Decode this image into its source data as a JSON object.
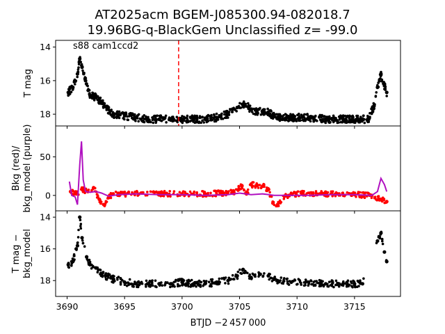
{
  "figure": {
    "title_line1": "AT2025acm  BGEM-J085300.94-082018.7",
    "title_line2": "19.96BG-q-BlackGem Unclassified z= -99.0",
    "annotation": "s88 cam1ccd2",
    "xlabel": "BTJD −2 457 000"
  },
  "chart_data": [
    {
      "type": "scatter",
      "panel": "top",
      "ylabel": "T mag",
      "y_inverted": true,
      "xlim": [
        3689.0,
        3719.0
      ],
      "ylim": [
        18.7,
        13.6
      ],
      "xticks": [
        3690,
        3695,
        3700,
        3705,
        3710,
        3715
      ],
      "yticks": [
        14,
        16,
        18
      ],
      "vline": {
        "x": 3699.7,
        "color": "#ff0000",
        "style": "dashed"
      },
      "series": [
        {
          "color": "#000000",
          "x": [
            3690.1,
            3690.5,
            3690.9,
            3691.1,
            3691.3,
            3691.6,
            3692.0,
            3692.5,
            3693.0,
            3693.5,
            3694.0,
            3695.0,
            3696.0,
            3697.0,
            3698.0,
            3699.0,
            3700.0,
            3701.0,
            3702.0,
            3703.0,
            3704.0,
            3704.8,
            3705.3,
            3705.8,
            3706.5,
            3707.0,
            3707.5,
            3708.0,
            3708.5,
            3709.5,
            3711.0,
            3712.5,
            3714.0,
            3715.5,
            3716.2,
            3716.7,
            3717.0,
            3717.3,
            3717.6,
            3717.8
          ],
          "y": [
            16.7,
            16.4,
            15.6,
            14.7,
            15.2,
            16.0,
            16.9,
            17.0,
            17.3,
            17.7,
            18.0,
            18.1,
            18.2,
            18.3,
            18.3,
            18.3,
            18.3,
            18.3,
            18.3,
            18.2,
            18.0,
            17.6,
            17.4,
            17.6,
            17.9,
            17.8,
            17.9,
            18.1,
            18.2,
            18.2,
            18.2,
            18.3,
            18.3,
            18.3,
            18.3,
            17.5,
            16.4,
            15.6,
            16.3,
            16.7
          ]
        }
      ]
    },
    {
      "type": "scatter",
      "panel": "middle",
      "ylabel": "Bkg (red)/\nbkg_model (purple)",
      "xlim": [
        3689.0,
        3719.0
      ],
      "ylim": [
        -20,
        90
      ],
      "yticks": [
        0,
        50
      ],
      "series": [
        {
          "color": "#ff0000",
          "x": [
            3690.3,
            3690.8,
            3691.3,
            3691.8,
            3692.3,
            3692.8,
            3693.2,
            3693.6,
            3694.0,
            3695.0,
            3696.5,
            3698.0,
            3700.0,
            3702.0,
            3703.5,
            3704.5,
            3705.2,
            3705.6,
            3706.0,
            3706.5,
            3707.0,
            3707.5,
            3707.9,
            3708.3,
            3709.0,
            3710.5,
            3712.0,
            3713.5,
            3715.0,
            3716.5,
            3717.3,
            3717.8
          ],
          "y": [
            5,
            2,
            8,
            5,
            10,
            -5,
            -12,
            -3,
            2,
            2,
            3,
            2,
            2,
            2,
            3,
            4,
            12,
            2,
            14,
            13,
            12,
            8,
            -10,
            -12,
            0,
            3,
            2,
            2,
            1,
            0,
            -5,
            -8
          ]
        },
        {
          "color": "#b010c0",
          "x": [
            3690.2,
            3690.4,
            3690.7,
            3690.9,
            3691.1,
            3691.25,
            3691.4,
            3691.6,
            3692.0,
            3692.5,
            3693.0,
            3693.6,
            3694.5,
            3696.0,
            3698.0,
            3700.0,
            3702.0,
            3704.0,
            3705.0,
            3706.0,
            3707.0,
            3708.0,
            3709.0,
            3711.0,
            3713.0,
            3715.0,
            3716.5,
            3717.0,
            3717.3,
            3717.6,
            3717.8
          ],
          "y": [
            18,
            0,
            -2,
            -12,
            40,
            70,
            20,
            5,
            4,
            5,
            3,
            -1,
            1,
            2,
            1,
            1,
            0,
            1,
            3,
            1,
            2,
            0,
            0,
            0,
            1,
            1,
            0,
            5,
            22,
            14,
            5
          ]
        }
      ]
    },
    {
      "type": "scatter",
      "panel": "bottom",
      "ylabel": "T mag −\nbkg_model",
      "y_inverted": true,
      "xlim": [
        3689.0,
        3719.0
      ],
      "ylim": [
        19.0,
        13.6
      ],
      "yticks": [
        14,
        16,
        18
      ],
      "series": [
        {
          "color": "#000000",
          "x": [
            3690.1,
            3690.5,
            3690.9,
            3691.1,
            3691.3,
            3691.7,
            3692.0,
            3692.5,
            3693.0,
            3694.0,
            3695.0,
            3696.0,
            3697.0,
            3698.0,
            3699.0,
            3700.0,
            3701.0,
            3702.0,
            3703.0,
            3704.0,
            3704.8,
            3705.3,
            3706.0,
            3706.8,
            3707.5,
            3708.3,
            3709.5,
            3711.0,
            3712.5,
            3714.0,
            3715.0,
            3715.7,
            3717.0,
            3717.3,
            3717.6,
            3717.8
          ],
          "y": [
            17.0,
            16.8,
            15.8,
            14.0,
            15.3,
            16.5,
            17.0,
            17.2,
            17.6,
            17.9,
            18.1,
            18.2,
            18.2,
            18.2,
            18.2,
            18.1,
            18.2,
            18.2,
            18.1,
            18.0,
            17.7,
            17.3,
            17.8,
            17.6,
            17.7,
            18.0,
            18.1,
            18.1,
            18.2,
            18.2,
            18.2,
            18.2,
            15.5,
            15.0,
            16.2,
            16.8
          ]
        }
      ]
    }
  ]
}
